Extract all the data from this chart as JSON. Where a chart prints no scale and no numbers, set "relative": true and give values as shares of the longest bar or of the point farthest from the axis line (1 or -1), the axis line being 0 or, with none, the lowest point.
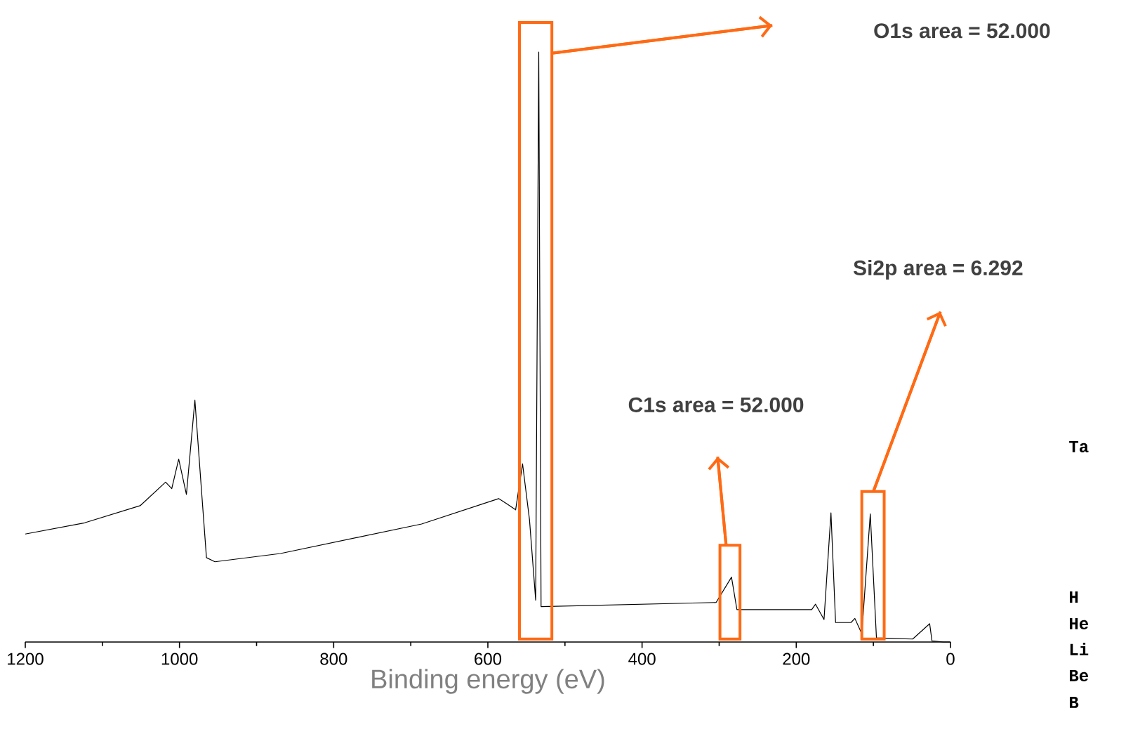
{
  "chart_data": {
    "type": "line",
    "relative": true,
    "xlabel": "Binding energy (eV)",
    "xlim": [
      1200,
      0
    ],
    "xticks": [
      1200,
      1000,
      800,
      600,
      400,
      200,
      0
    ],
    "series": [
      {
        "color": "#000000",
        "x": [
          1200,
          1123,
          1051,
          1018,
          1010,
          1001,
          991,
          980,
          972,
          965,
          954,
          869,
          686,
          586,
          574,
          564,
          555,
          546,
          538,
          534,
          531,
          304,
          284,
          277,
          180,
          175,
          164,
          155,
          149,
          129,
          124,
          115,
          104,
          96,
          49,
          27,
          24,
          9,
          0
        ],
        "values": [
          0.183,
          0.202,
          0.231,
          0.271,
          0.26,
          0.31,
          0.25,
          0.41,
          0.267,
          0.143,
          0.136,
          0.15,
          0.2,
          0.243,
          0.233,
          0.224,
          0.302,
          0.207,
          0.071,
          1,
          0.06,
          0.067,
          0.11,
          0.055,
          0.055,
          0.064,
          0.038,
          0.219,
          0.033,
          0.033,
          0.04,
          0.014,
          0.217,
          0.007,
          0.005,
          0.031,
          0.002,
          0,
          0
        ]
      }
    ],
    "annotations": [
      "O1s area = 52.000",
      "Si2p area = 6.292",
      "C1s area = 52.000",
      "Ta",
      "H",
      "He",
      "Li",
      "Be",
      "B"
    ]
  }
}
